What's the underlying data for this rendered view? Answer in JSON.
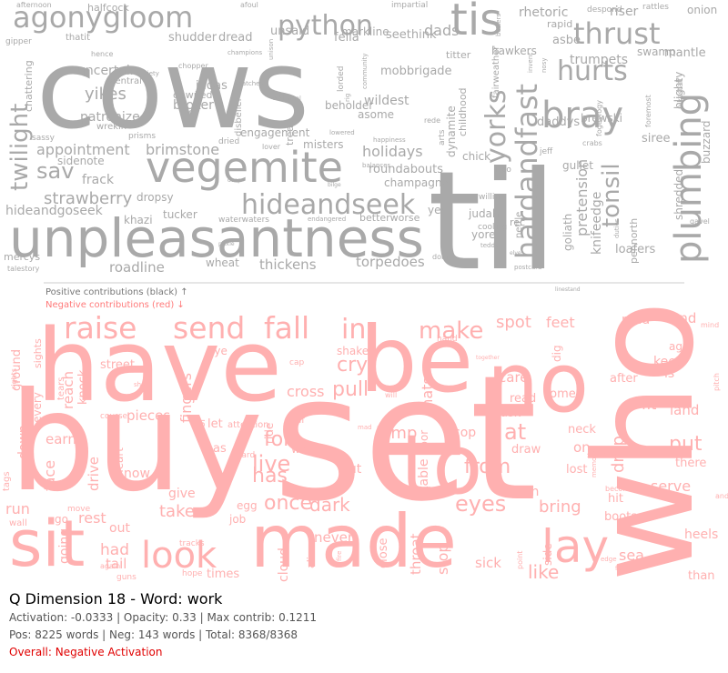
{
  "header": {
    "title": "Q Dimension 18 - Word: work",
    "stats_line1": "Activation: -0.0333 | Opacity: 0.33 | Max contrib: 0.1211",
    "stats_line2": "Pos: 8225 words | Neg: 143 words | Total: 8368/8368",
    "overall": "Overall: Negative Activation"
  },
  "legend": {
    "positive_label": "Positive contributions (black) ↑",
    "negative_label": "Negative contributions (red) ↓"
  },
  "colors": {
    "positive_word": "#a9a9a9",
    "negative_word": "#ffb0b0",
    "divider": "#cccccc",
    "overall_text": "#e00000"
  },
  "chart_data": {
    "type": "wordcloud",
    "positive_words": [
      "cows",
      "til",
      "unpleasantness",
      "vegemite",
      "tis",
      "bray",
      "agonygloom",
      "python",
      "thrust",
      "hurts",
      "plumbing",
      "hideandseek",
      "twilight",
      "hardandfast",
      "tonsil",
      "yorks",
      "sav",
      "strawberry",
      "brimstone",
      "appointment",
      "holidays",
      "roundabouts",
      "champagne",
      "yikes",
      "uncertain",
      "patronize",
      "judas",
      "broker",
      "dawned",
      "shudder",
      "dread",
      "unsaid",
      "fella",
      "dads",
      "seethink",
      "markline",
      "mobbrigade",
      "beholder",
      "rhetoric",
      "asbe",
      "riser",
      "trumpets",
      "pretension",
      "knifeedge",
      "goliath",
      "gullet",
      "brewski",
      "daddys",
      "siree",
      "shredded",
      "blighty",
      "buzzard",
      "pennorth",
      "mantle",
      "swamp",
      "rapid",
      "onion",
      "despond",
      "rattles",
      "hawkers",
      "titter",
      "asome",
      "wildest",
      "dynamite",
      "childhood",
      "fairweather",
      "chick",
      "judah",
      "yore",
      "cooling",
      "rec",
      "nettle",
      "loafers",
      "tucker",
      "khazi",
      "frack",
      "sidenote",
      "dropsy",
      "hideandgoseek",
      "mercys",
      "talestory",
      "roadline",
      "wheat",
      "thickens",
      "torpedoes",
      "yen",
      "betterworse",
      "waterwaters",
      "endangered",
      "misters",
      "tread",
      "disbelief",
      "dried",
      "lover",
      "prisms",
      "sassy",
      "wrekin",
      "central",
      "chattering",
      "gipper",
      "thatit",
      "halfcock",
      "afternoon",
      "afoul",
      "impartial",
      "rede",
      "arts",
      "ngo",
      "willin",
      "jeff",
      "crabs",
      "foremost",
      "gavel",
      "teddy",
      "postcard",
      "lowered",
      "balances",
      "happiness",
      "engagement",
      "chopper",
      "se",
      "pikestaff",
      "fogeyfogy",
      "doin",
      "matches",
      "lorded",
      "rig",
      "community",
      "invent",
      "nosy",
      "society",
      "duties",
      "champions",
      "unison",
      "betters",
      "hence",
      "bilge",
      "deep",
      "linestand",
      "pickle",
      "elves",
      "subliminal",
      "sight",
      "tackle",
      "mancunian",
      "tumult"
    ],
    "negative_words": [
      "set",
      "buy",
      "who",
      "have",
      "be",
      "no",
      "made",
      "sit",
      "to",
      "raise",
      "send",
      "fall",
      "in",
      "look",
      "lay",
      "make",
      "spot",
      "feet",
      "mad",
      "lend",
      "serve",
      "keep",
      "age",
      "is",
      "down",
      "ground",
      "sights",
      "every",
      "tears",
      "reach",
      "street",
      "knock",
      "hand",
      "cry",
      "thats",
      "pull",
      "shake",
      "dig",
      "care",
      "read",
      "come",
      "after",
      "neck",
      "fit",
      "land",
      "drop",
      "at",
      "put",
      "on",
      "lost",
      "there",
      "fingers",
      "eye",
      "cap",
      "cross",
      "half",
      "water",
      "for",
      "live",
      "has",
      "once",
      "dark",
      "eyes",
      "from",
      "but",
      "earth",
      "jump",
      "cop",
      "ear",
      "ask",
      "draw",
      "bring",
      "hit",
      "boots",
      "heels",
      "sea",
      "than",
      "like",
      "sick",
      "stop",
      "throat",
      "side",
      "table",
      "close",
      "door",
      "never",
      "alive",
      "cloud",
      "tracks",
      "times",
      "hope",
      "guns",
      "tail",
      "had",
      "out",
      "rest",
      "move",
      "go",
      "wall",
      "run",
      "going",
      "face",
      "drive",
      "heart",
      "now",
      "take",
      "give",
      "egg",
      "job",
      "guard",
      "let",
      "as",
      "ride",
      "pieces",
      "earn",
      "course",
      "mind",
      "pitch",
      "memory",
      "state",
      "become",
      "will",
      "mad",
      "fire",
      "edge",
      "foot",
      "shoes",
      "tags",
      "rights",
      "together",
      "and",
      "point",
      "again",
      "of",
      "attention",
      "harm",
      "ride",
      "leave"
    ]
  }
}
